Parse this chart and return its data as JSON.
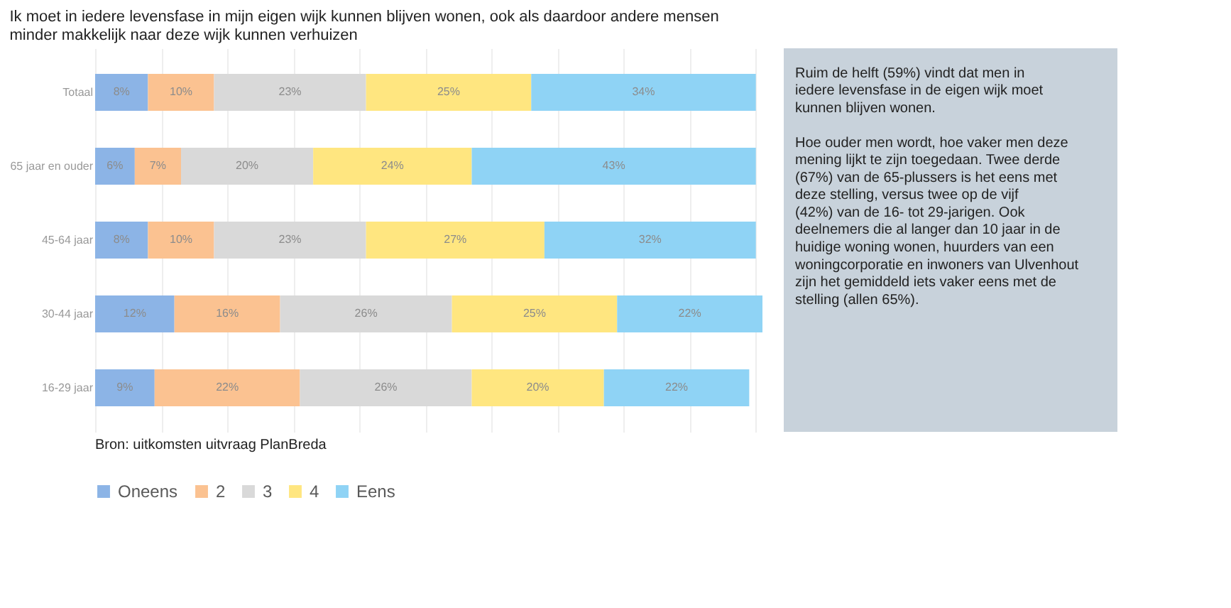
{
  "chart_data": {
    "type": "bar",
    "orientation": "horizontal",
    "stacked": true,
    "title": "Ik moet in iedere levensfase in mijn eigen wijk kunnen blijven wonen, ook als daardoor andere mensen minder makkelijk naar deze wijk kunnen verhuizen",
    "categories": [
      "Totaal",
      "65 jaar en ouder",
      "45-64 jaar",
      "30-44 jaar",
      "16-29 jaar"
    ],
    "series": [
      {
        "name": "Oneens",
        "color": "#8cb4e6",
        "values": [
          8,
          6,
          8,
          12,
          9
        ],
        "value_labels": [
          "8%",
          "6%",
          "8%",
          "12%",
          "9%"
        ]
      },
      {
        "name": "2",
        "color": "#fbc291",
        "values": [
          10,
          7,
          10,
          16,
          22
        ],
        "value_labels": [
          "10%",
          "7%",
          "10%",
          "16%",
          "22%"
        ]
      },
      {
        "name": "3",
        "color": "#d9d9d9",
        "values": [
          23,
          20,
          23,
          26,
          26
        ],
        "value_labels": [
          "23%",
          "20%",
          "23%",
          "26%",
          "26%"
        ]
      },
      {
        "name": "4",
        "color": "#ffe680",
        "values": [
          25,
          24,
          27,
          25,
          20
        ],
        "value_labels": [
          "25%",
          "24%",
          "27%",
          "25%",
          "20%"
        ]
      },
      {
        "name": "Eens",
        "color": "#8fd3f5",
        "values": [
          34,
          43,
          32,
          22,
          22
        ],
        "value_labels": [
          "34%",
          "43%",
          "32%",
          "22%",
          "22%"
        ]
      }
    ],
    "xlim": [
      0,
      101
    ],
    "xticks": [
      {
        "value": 0,
        "label": null
      },
      {
        "value": 10,
        "label": null
      },
      {
        "value": 20,
        "label": null
      },
      {
        "value": 30,
        "label": null
      },
      {
        "value": 40,
        "label": null
      },
      {
        "value": 50,
        "label": null
      },
      {
        "value": 60,
        "label": null
      },
      {
        "value": 70,
        "label": null
      },
      {
        "value": 80,
        "label": null
      },
      {
        "value": 90,
        "label": null
      },
      {
        "value": 100,
        "label": null
      }
    ],
    "tick_labels": "y",
    "grid": "x",
    "legend": "bottom",
    "annotations": [
      "Ruim de helft (59%) vindt dat men in iedere levensfase in de eigen wijk moet kunnen blijven wonen.",
      "Hoe ouder men wordt, hoe vaker men deze mening lijkt te zijn toegedaan. Twee derde (67%) van de 65-plussers is het eens met deze stelling, versus twee op de vijf (42%) van de 16- tot 29-jarigen. Ook deelnemers die al langer dan 10 jaar in de huidige woning wonen, huurders van een woningcorporatie en inwoners van Ulvenhout zijn het gemiddeld iets vaker eens met de stelling (allen 65%).",
      "Bron: uitkomsten uitvraag PlanBreda"
    ]
  }
}
